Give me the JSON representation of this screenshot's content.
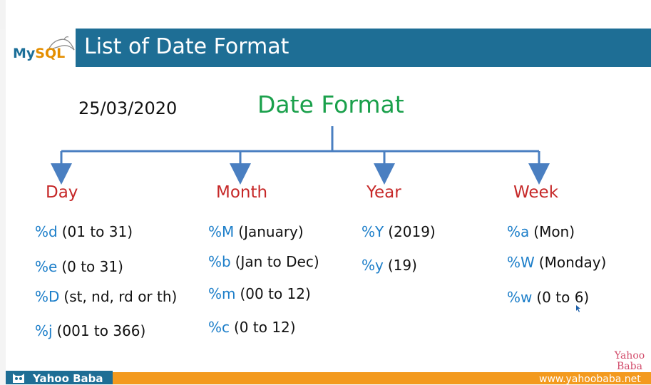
{
  "header": {
    "logo": {
      "my": "My",
      "sql": "SQL",
      "icon": "dolphin-icon"
    },
    "title": "List of Date Format"
  },
  "date_example": "25/03/2020",
  "diagram_title": "Date Format",
  "categories": [
    {
      "name": "Day",
      "entries": [
        {
          "code": "%d",
          "desc": "(01 to 31)"
        },
        {
          "code": "%e",
          "desc": "(0 to 31)"
        },
        {
          "code": "%D",
          "desc": "(st, nd, rd or th)"
        },
        {
          "code": "%j",
          "desc": "(001 to 366)"
        }
      ]
    },
    {
      "name": "Month",
      "entries": [
        {
          "code": "%M",
          "desc": "(January)"
        },
        {
          "code": "%b",
          "desc": "(Jan to Dec)"
        },
        {
          "code": "%m",
          "desc": "(00 to 12)"
        },
        {
          "code": "%c",
          "desc": "(0 to 12)"
        }
      ]
    },
    {
      "name": "Year",
      "entries": [
        {
          "code": "%Y",
          "desc": "(2019)"
        },
        {
          "code": "%y",
          "desc": "(19)"
        }
      ]
    },
    {
      "name": "Week",
      "entries": [
        {
          "code": "%a",
          "desc": "(Mon)"
        },
        {
          "code": "%W",
          "desc": "(Monday)"
        },
        {
          "code": "%w",
          "desc": "(0 to 6)"
        }
      ]
    }
  ],
  "footer": {
    "brand": "Yahoo Baba",
    "website": "www.yahoobaba.net",
    "watermark_line1": "Yahoo",
    "watermark_line2": "Baba"
  },
  "colors": {
    "title_bar": "#1e6e95",
    "diagram_title": "#1aa04b",
    "category": "#c62828",
    "code": "#1c7ec9",
    "connector": "#4a7fc1",
    "footer": "#f39a1e"
  }
}
